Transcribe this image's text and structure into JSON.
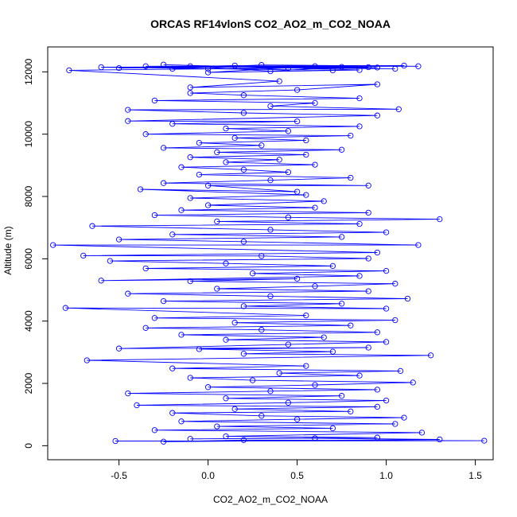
{
  "chart_data": {
    "type": "line",
    "title": "ORCAS RF14vlonS CO2_AO2_m_CO2_NOAA",
    "xlabel": "CO2_AO2_m_CO2_NOAA",
    "ylabel": "Altitude (m)",
    "xlim": [
      -0.9,
      1.6
    ],
    "ylim": [
      -450,
      12800
    ],
    "xticks": [
      -0.5,
      0.0,
      0.5,
      1.0,
      1.5
    ],
    "xtick_labels": [
      "-0.5",
      "0.0",
      "0.5",
      "1.0",
      "1.5"
    ],
    "yticks": [
      0,
      2000,
      4000,
      6000,
      8000,
      10000,
      12000
    ],
    "ytick_labels": [
      "0",
      "2000",
      "4000",
      "6000",
      "8000",
      "10000",
      "12000"
    ],
    "grid": false,
    "series": [
      {
        "color": "#0000ff",
        "marker": "open-circle",
        "line": true,
        "points": [
          [
            -0.52,
            150
          ],
          [
            1.55,
            160
          ],
          [
            0.2,
            180
          ],
          [
            -0.25,
            130
          ],
          [
            1.3,
            200
          ],
          [
            0.6,
            240
          ],
          [
            -0.1,
            220
          ],
          [
            0.95,
            260
          ],
          [
            0.1,
            300
          ],
          [
            1.2,
            420
          ],
          [
            -0.3,
            500
          ],
          [
            0.7,
            560
          ],
          [
            0.05,
            620
          ],
          [
            1.05,
            700
          ],
          [
            -0.15,
            780
          ],
          [
            0.5,
            850
          ],
          [
            1.1,
            900
          ],
          [
            0.3,
            960
          ],
          [
            -0.2,
            1050
          ],
          [
            0.8,
            1100
          ],
          [
            0.15,
            1180
          ],
          [
            0.95,
            1250
          ],
          [
            -0.4,
            1300
          ],
          [
            0.45,
            1380
          ],
          [
            1.0,
            1450
          ],
          [
            0.1,
            1520
          ],
          [
            0.75,
            1600
          ],
          [
            -0.45,
            1680
          ],
          [
            0.35,
            1750
          ],
          [
            0.95,
            1800
          ],
          [
            0.0,
            1880
          ],
          [
            0.6,
            1950
          ],
          [
            1.15,
            2030
          ],
          [
            0.25,
            2100
          ],
          [
            -0.1,
            2180
          ],
          [
            0.85,
            2250
          ],
          [
            0.4,
            2330
          ],
          [
            1.08,
            2400
          ],
          [
            -0.2,
            2480
          ],
          [
            0.55,
            2560
          ],
          [
            -0.68,
            2740
          ],
          [
            1.25,
            2900
          ],
          [
            0.2,
            2950
          ],
          [
            0.7,
            3020
          ],
          [
            -0.05,
            3100
          ],
          [
            0.9,
            3150
          ],
          [
            -0.5,
            3120
          ],
          [
            0.45,
            3250
          ],
          [
            1.0,
            3330
          ],
          [
            0.1,
            3400
          ],
          [
            0.65,
            3480
          ],
          [
            -0.15,
            3560
          ],
          [
            0.95,
            3640
          ],
          [
            0.3,
            3720
          ],
          [
            -0.35,
            3780
          ],
          [
            0.8,
            3860
          ],
          [
            0.15,
            3950
          ],
          [
            1.05,
            4030
          ],
          [
            -0.3,
            4100
          ],
          [
            0.55,
            4180
          ],
          [
            -0.8,
            4420
          ],
          [
            1.0,
            4400
          ],
          [
            0.2,
            4480
          ],
          [
            0.75,
            4560
          ],
          [
            -0.25,
            4640
          ],
          [
            1.12,
            4720
          ],
          [
            0.35,
            4800
          ],
          [
            -0.45,
            4880
          ],
          [
            0.9,
            4960
          ],
          [
            0.05,
            5040
          ],
          [
            0.6,
            5120
          ],
          [
            1.05,
            5200
          ],
          [
            -0.1,
            5280
          ],
          [
            0.5,
            5360
          ],
          [
            -0.6,
            5300
          ],
          [
            0.85,
            5450
          ],
          [
            0.25,
            5530
          ],
          [
            1.0,
            5610
          ],
          [
            -0.35,
            5690
          ],
          [
            0.7,
            5770
          ],
          [
            0.1,
            5850
          ],
          [
            -0.55,
            5930
          ],
          [
            0.9,
            6010
          ],
          [
            0.3,
            6090
          ],
          [
            -0.7,
            6100
          ],
          [
            0.95,
            6200
          ],
          [
            -0.87,
            6440
          ],
          [
            1.18,
            6440
          ],
          [
            0.2,
            6550
          ],
          [
            -0.5,
            6620
          ],
          [
            0.75,
            6700
          ],
          [
            -0.2,
            6780
          ],
          [
            1.0,
            6850
          ],
          [
            0.35,
            6930
          ],
          [
            -0.65,
            7050
          ],
          [
            0.85,
            7120
          ],
          [
            0.05,
            7200
          ],
          [
            1.3,
            7270
          ],
          [
            0.45,
            7330
          ],
          [
            -0.3,
            7400
          ],
          [
            0.9,
            7480
          ],
          [
            -0.15,
            7560
          ],
          [
            0.6,
            7640
          ],
          [
            0.0,
            7720
          ],
          [
            0.65,
            7850
          ],
          [
            -0.1,
            7950
          ],
          [
            0.55,
            8050
          ],
          [
            -0.38,
            8230
          ],
          [
            0.5,
            8150
          ],
          [
            0.0,
            8350
          ],
          [
            0.9,
            8350
          ],
          [
            -0.25,
            8430
          ],
          [
            0.35,
            8520
          ],
          [
            0.8,
            8600
          ],
          [
            -0.05,
            8700
          ],
          [
            0.45,
            8780
          ],
          [
            0.2,
            8860
          ],
          [
            -0.15,
            8940
          ],
          [
            0.6,
            9020
          ],
          [
            0.1,
            9100
          ],
          [
            0.4,
            9180
          ],
          [
            -0.1,
            9260
          ],
          [
            0.55,
            9340
          ],
          [
            0.05,
            9420
          ],
          [
            0.75,
            9500
          ],
          [
            -0.25,
            9560
          ],
          [
            0.3,
            9640
          ],
          [
            -0.05,
            9720
          ],
          [
            0.55,
            9800
          ],
          [
            0.15,
            9880
          ],
          [
            0.8,
            9950
          ],
          [
            -0.35,
            10000
          ],
          [
            0.45,
            10100
          ],
          [
            0.1,
            10180
          ],
          [
            0.85,
            10250
          ],
          [
            -0.2,
            10330
          ],
          [
            0.5,
            10410
          ],
          [
            -0.45,
            10420
          ],
          [
            0.95,
            10600
          ],
          [
            0.2,
            10680
          ],
          [
            -0.45,
            10780
          ],
          [
            1.07,
            10800
          ],
          [
            0.35,
            10900
          ],
          [
            0.6,
            11000
          ],
          [
            -0.3,
            11080
          ],
          [
            0.85,
            11150
          ],
          [
            0.2,
            11250
          ],
          [
            -0.1,
            11320
          ],
          [
            0.5,
            11420
          ],
          [
            0.95,
            11600
          ],
          [
            -0.1,
            11500
          ],
          [
            0.4,
            11700
          ],
          [
            -0.78,
            12050
          ],
          [
            0.9,
            12150
          ],
          [
            -0.35,
            12180
          ],
          [
            1.1,
            12200
          ],
          [
            0.0,
            12100
          ],
          [
            0.7,
            12050
          ],
          [
            -0.6,
            12150
          ],
          [
            1.18,
            12180
          ],
          [
            0.3,
            12220
          ],
          [
            -0.2,
            12100
          ],
          [
            0.95,
            12140
          ],
          [
            0.15,
            12200
          ],
          [
            -0.5,
            12120
          ],
          [
            0.6,
            12180
          ],
          [
            0.0,
            11980
          ],
          [
            0.85,
            12060
          ],
          [
            -0.25,
            12230
          ],
          [
            0.45,
            12120
          ],
          [
            1.05,
            12100
          ],
          [
            -0.1,
            12180
          ],
          [
            0.35,
            12020
          ],
          [
            0.75,
            12160
          ]
        ]
      }
    ]
  }
}
